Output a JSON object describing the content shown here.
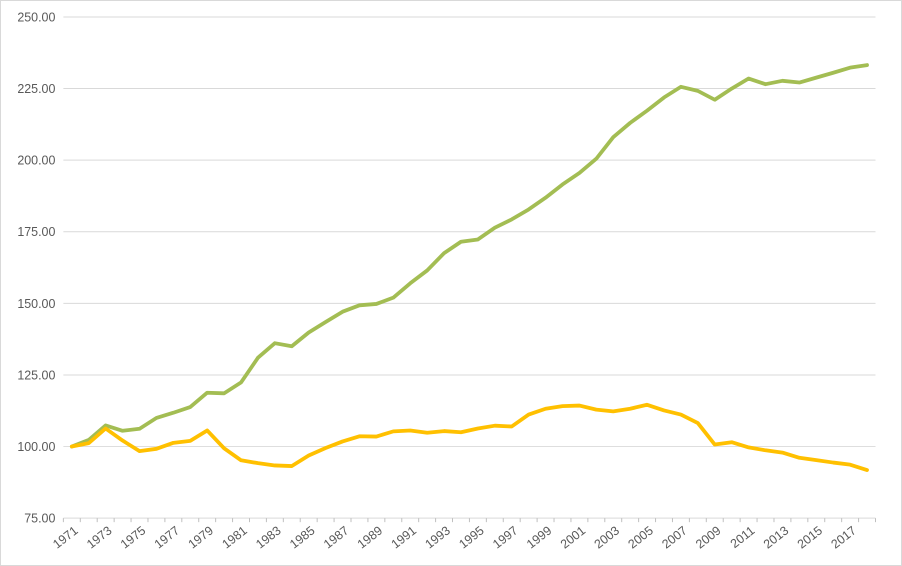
{
  "chart": {
    "background_color": "#FFFFFF",
    "border_color": "#D9D9D9",
    "gridline_color": "#D9D9D9",
    "axis_line_color": "#D9D9D9",
    "tick_mark_color": "#BFBFBF",
    "axis_label_color": "#595959"
  },
  "chart_data": {
    "type": "line",
    "title": "",
    "xlabel": "",
    "ylabel": "",
    "legend": "none",
    "grid": true,
    "x": [
      1971,
      1972,
      1973,
      1974,
      1975,
      1976,
      1977,
      1978,
      1979,
      1980,
      1981,
      1982,
      1983,
      1984,
      1985,
      1986,
      1987,
      1988,
      1989,
      1990,
      1991,
      1992,
      1993,
      1994,
      1995,
      1996,
      1997,
      1998,
      1999,
      2000,
      2001,
      2002,
      2003,
      2004,
      2005,
      2006,
      2007,
      2008,
      2009,
      2010,
      2011,
      2012,
      2013,
      2014,
      2015,
      2016,
      2017,
      2018
    ],
    "x_tick_labels": [
      "1971",
      "1973",
      "1975",
      "1977",
      "1979",
      "1981",
      "1983",
      "1985",
      "1987",
      "1989",
      "1991",
      "1993",
      "1995",
      "1997",
      "1999",
      "2001",
      "2003",
      "2005",
      "2007",
      "2009",
      "2011",
      "2013",
      "2015",
      "2017"
    ],
    "y_axis": {
      "min": 75,
      "max": 250,
      "step": 25,
      "tick_labels": [
        "250.00",
        "225.00",
        "200.00",
        "175.00",
        "150.00",
        "125.00",
        "100.00",
        "75.00"
      ]
    },
    "series": [
      {
        "name": "green",
        "color": "#A3BD53",
        "values": [
          100.0,
          102.3,
          107.4,
          105.5,
          106.2,
          110.0,
          111.8,
          113.8,
          118.8,
          118.6,
          122.4,
          131.0,
          136.1,
          135.0,
          139.8,
          143.5,
          147.1,
          149.3,
          149.8,
          152.0,
          157.0,
          161.5,
          167.5,
          171.5,
          172.3,
          176.4,
          179.3,
          182.8,
          186.9,
          191.5,
          195.5,
          200.5,
          208.0,
          213.0,
          217.3,
          221.9,
          225.6,
          224.2,
          221.1,
          225.0,
          228.5,
          226.5,
          227.7,
          227.1,
          228.8,
          230.5,
          232.3,
          233.2
        ]
      },
      {
        "name": "yellow",
        "color": "#FFC000",
        "values": [
          100.0,
          101.2,
          106.3,
          102.1,
          98.4,
          99.2,
          101.3,
          102.0,
          105.6,
          99.4,
          95.2,
          94.2,
          93.4,
          93.2,
          96.9,
          99.5,
          101.8,
          103.6,
          103.5,
          105.3,
          105.6,
          104.8,
          105.4,
          105.0,
          106.3,
          107.3,
          107.0,
          111.2,
          113.2,
          114.1,
          114.3,
          112.9,
          112.3,
          113.2,
          114.6,
          112.6,
          111.2,
          108.2,
          100.7,
          101.5,
          99.7,
          98.7,
          97.9,
          96.1,
          95.3,
          94.4,
          93.7,
          91.8
        ]
      }
    ]
  }
}
